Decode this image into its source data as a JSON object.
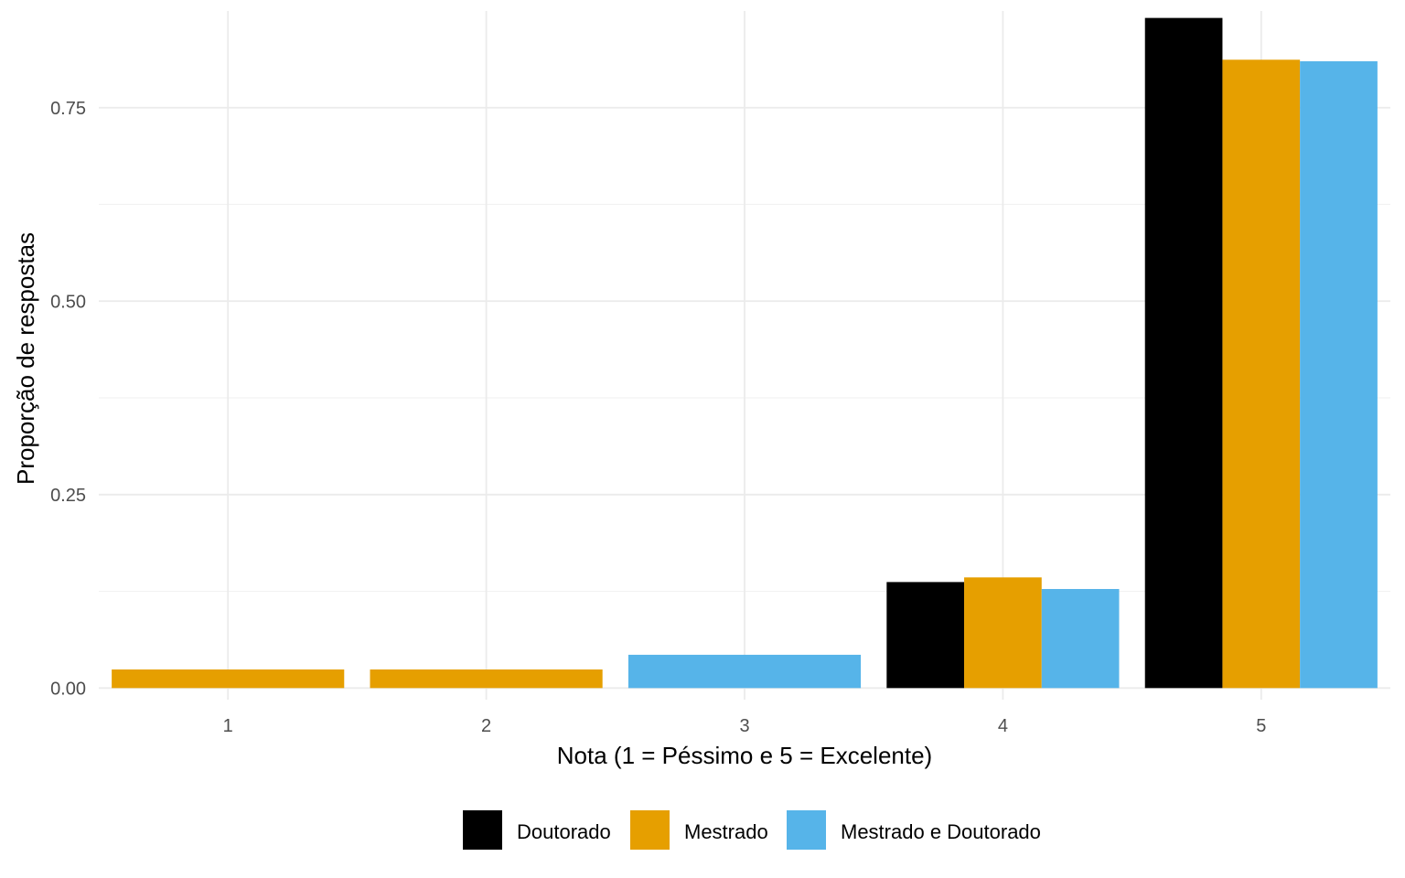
{
  "chart_data": {
    "type": "bar",
    "xlabel": "Nota (1 = Péssimo e 5 = Excelente)",
    "ylabel": "Proporção de respostas",
    "categories": [
      "1",
      "2",
      "3",
      "4",
      "5"
    ],
    "ylim": [
      -0.015,
      0.875
    ],
    "yticks": [
      0.0,
      0.25,
      0.5,
      0.75
    ],
    "ytick_labels": [
      "0.00",
      "0.25",
      "0.50",
      "0.75"
    ],
    "grid": true,
    "legend_position": "bottom",
    "series": [
      {
        "name": "Doutorado",
        "color": "#000000",
        "values": [
          null,
          null,
          null,
          0.137,
          0.866
        ]
      },
      {
        "name": "Mestrado",
        "color": "#E69F00",
        "values": [
          0.024,
          0.024,
          null,
          0.143,
          0.812
        ]
      },
      {
        "name": "Mestrado e Doutorado",
        "color": "#56B4E9",
        "values": [
          null,
          null,
          0.043,
          0.128,
          0.81
        ]
      }
    ]
  }
}
